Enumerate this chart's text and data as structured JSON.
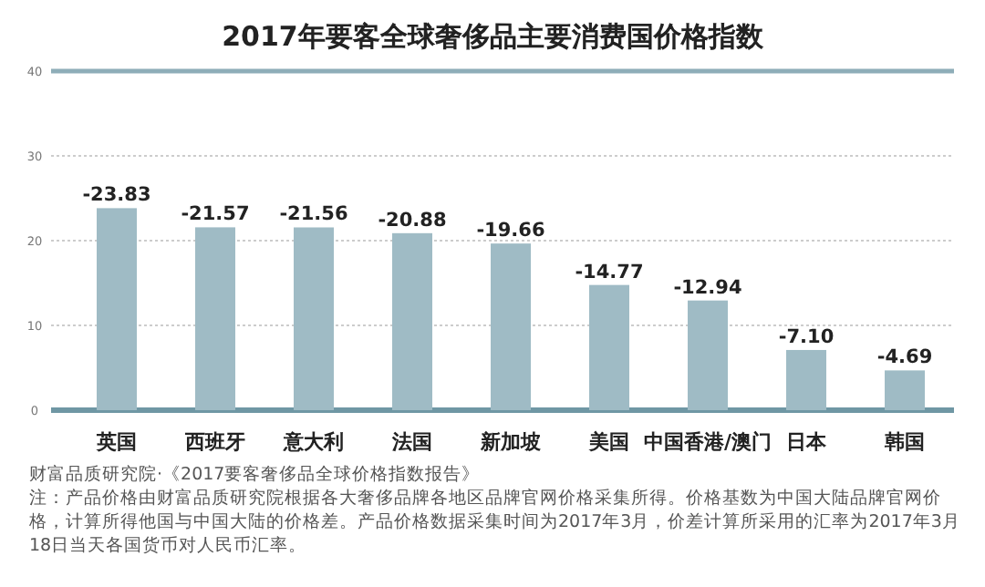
{
  "chart_data": {
    "type": "bar",
    "title": "2017年要客全球奢侈品主要消费国价格指数",
    "categories": [
      "英国",
      "西班牙",
      "意大利",
      "法国",
      "新加坡",
      "美国",
      "中国香港/澳门",
      "日本",
      "韩国"
    ],
    "values": [
      -23.83,
      -21.57,
      -21.56,
      -20.88,
      -19.66,
      -14.77,
      -12.94,
      -7.1,
      -4.69
    ],
    "value_labels": [
      "-23.83",
      "-21.57",
      "-21.56",
      "-20.88",
      "-19.66",
      "-14.77",
      "-12.94",
      "-7.10",
      "-4.69"
    ],
    "color": "#9fbbc5",
    "ylim": [
      0,
      -40
    ],
    "yticks": [
      0,
      {
        "value": -10,
        "label": "10"
      },
      {
        "value": -20,
        "label": "20"
      },
      {
        "value": -30,
        "label": "30"
      },
      {
        "value": -40,
        "label": "40"
      }
    ],
    "grid": "y",
    "annotations": [
      "财富品质研究院·《2017要客奢侈品全球价格指数报告》",
      "注：产品价格由财富品质研究院根据各大奢侈品牌各地区品牌官网价格采集所得。价格基数为中国大陆品牌官网价格，计算所得他国与中国大陆的价格差。产品价格数据采集时间为2017年3月，价差计算所采用的汇率为2017年3月18日当天各国货币对人民币汇率。"
    ]
  }
}
